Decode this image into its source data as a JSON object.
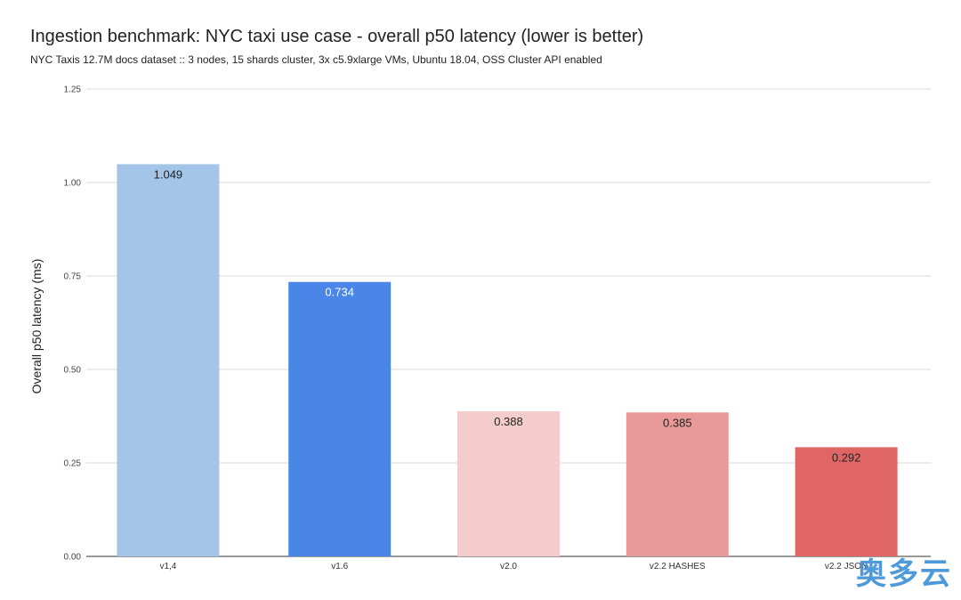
{
  "chart_data": {
    "type": "bar",
    "title": "Ingestion benchmark: NYC taxi use case - overall p50 latency (lower is better)",
    "subtitle": "NYC Taxis 12.7M docs dataset :: 3 nodes, 15 shards cluster, 3x c5.9xlarge VMs, Ubuntu 18.04, OSS Cluster API enabled",
    "xlabel": "",
    "ylabel": "Overall p50 latency (ms)",
    "ylim": [
      0,
      1.25
    ],
    "yticks": [
      "0.00",
      "0.25",
      "0.50",
      "0.75",
      "1.00",
      "1.25"
    ],
    "categories": [
      "v1,4",
      "v1.6",
      "v2.0",
      "v2.2 HASHES",
      "v2.2 JSON"
    ],
    "values": [
      1.049,
      0.734,
      0.388,
      0.385,
      0.292
    ],
    "value_labels": [
      "1.049",
      "0.734",
      "0.388",
      "0.385",
      "0.292"
    ],
    "bar_colors": [
      "#a4c5e8",
      "#4a86e8",
      "#f4cccc",
      "#ea9999",
      "#e06666"
    ],
    "label_colors": [
      "#222222",
      "#ffffff",
      "#222222",
      "#222222",
      "#222222"
    ],
    "grid": true,
    "legend": "none"
  },
  "watermark": "奥多云"
}
